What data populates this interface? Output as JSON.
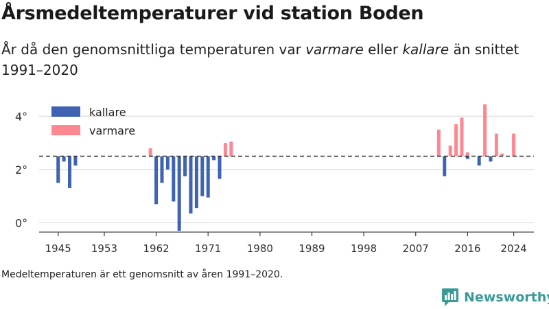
{
  "header": {
    "title": "Årsmedeltemperaturer vid station Boden",
    "subtitle_parts": {
      "p1": "År då den genomsnittliga temperaturen var ",
      "em1": "varmare",
      "p2": " eller ",
      "em2": "kallare",
      "p3": " än snittet 1991–2020"
    }
  },
  "footnote": "Medeltemperaturen är ett genomsnitt av åren 1991–2020.",
  "brand": {
    "name": "Newsworthy",
    "color": "#3a9a97"
  },
  "chart_data": {
    "type": "bar",
    "baseline": 2.5,
    "baseline_style": "dashed",
    "ylim": [
      -0.35,
      4.5
    ],
    "xlim": [
      1941.7,
      2027.5
    ],
    "y_ticks": [
      0,
      2,
      4
    ],
    "y_tick_labels": [
      "0°",
      "2°",
      "4°"
    ],
    "x_ticks": [
      1945,
      1953,
      1962,
      1971,
      1980,
      1989,
      1998,
      2007,
      2016,
      2024
    ],
    "grid": true,
    "legend_position": "top-left",
    "colors": {
      "kallare": "#3f62b3",
      "varmare": "#ff8791"
    },
    "series": [
      {
        "name": "kallare",
        "color": "#3f62b3",
        "points": [
          {
            "x": 1945,
            "y": 1.5
          },
          {
            "x": 1946,
            "y": 2.3
          },
          {
            "x": 1947,
            "y": 1.3
          },
          {
            "x": 1948,
            "y": 2.15
          },
          {
            "x": 1962,
            "y": 0.7
          },
          {
            "x": 1963,
            "y": 1.5
          },
          {
            "x": 1964,
            "y": 2.0
          },
          {
            "x": 1965,
            "y": 0.8
          },
          {
            "x": 1966,
            "y": -0.3
          },
          {
            "x": 1967,
            "y": 1.75
          },
          {
            "x": 1968,
            "y": 0.35
          },
          {
            "x": 1969,
            "y": 0.55
          },
          {
            "x": 1970,
            "y": 1.0
          },
          {
            "x": 1971,
            "y": 0.95
          },
          {
            "x": 1972,
            "y": 2.35
          },
          {
            "x": 1973,
            "y": 1.65
          },
          {
            "x": 2012,
            "y": 1.75
          },
          {
            "x": 2016,
            "y": 2.4
          },
          {
            "x": 2018,
            "y": 2.15
          },
          {
            "x": 2020,
            "y": 2.3
          }
        ]
      },
      {
        "name": "varmare",
        "color": "#ff8791",
        "points": [
          {
            "x": 1961,
            "y": 2.8
          },
          {
            "x": 1974,
            "y": 3.0
          },
          {
            "x": 1975,
            "y": 3.05
          },
          {
            "x": 2011,
            "y": 3.5
          },
          {
            "x": 2013,
            "y": 2.9
          },
          {
            "x": 2014,
            "y": 3.7
          },
          {
            "x": 2015,
            "y": 3.95
          },
          {
            "x": 2016,
            "y": 2.65
          },
          {
            "x": 2019,
            "y": 4.45
          },
          {
            "x": 2021,
            "y": 3.35
          },
          {
            "x": 2022,
            "y": 2.6
          },
          {
            "x": 2024,
            "y": 3.35
          }
        ]
      }
    ]
  }
}
